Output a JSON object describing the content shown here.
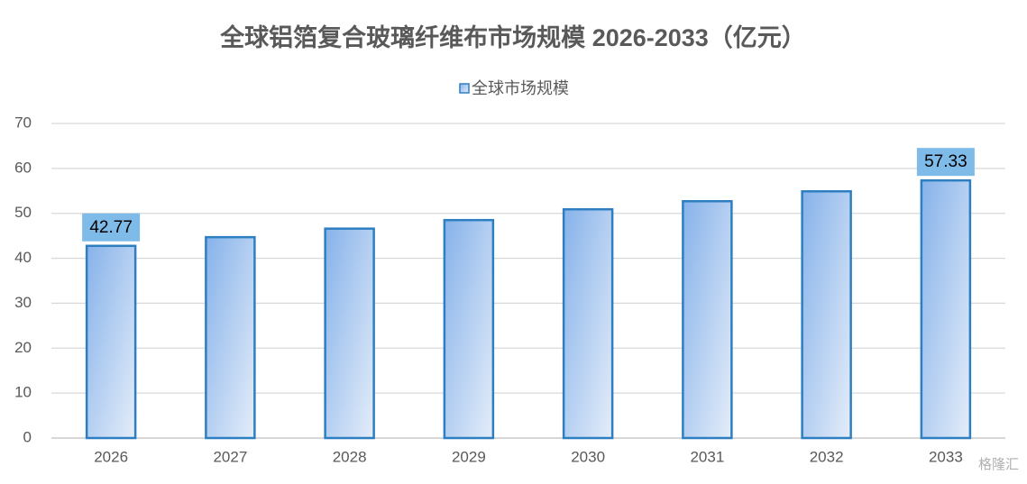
{
  "chart_data": {
    "type": "bar",
    "title": "全球铝箔复合玻璃纤维布市场规模 2026-2033（亿元）",
    "categories": [
      "2026",
      "2027",
      "2028",
      "2029",
      "2030",
      "2031",
      "2032",
      "2033"
    ],
    "series": [
      {
        "name": "全球市场规模",
        "color": "#2e7fc1",
        "values": [
          42.77,
          44.7,
          46.6,
          48.5,
          50.9,
          52.7,
          54.9,
          57.33
        ],
        "value_labels": [
          "42.77",
          null,
          null,
          null,
          null,
          null,
          null,
          "57.33"
        ]
      }
    ],
    "ylim": [
      0,
      70
    ],
    "yticks": [
      0,
      10,
      20,
      30,
      40,
      50,
      60,
      70
    ],
    "grid": true,
    "legend": "top",
    "watermark": "格隆汇"
  }
}
